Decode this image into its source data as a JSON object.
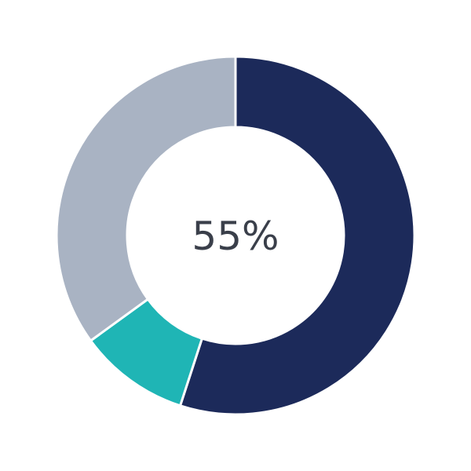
{
  "chart_data": {
    "type": "pie",
    "donut": true,
    "center_label": "55%",
    "values": [
      55,
      10,
      35
    ],
    "colors": [
      "#1c2a5a",
      "#1fb5b5",
      "#a9b3c3"
    ],
    "start": "top",
    "direction": "clockwise"
  }
}
